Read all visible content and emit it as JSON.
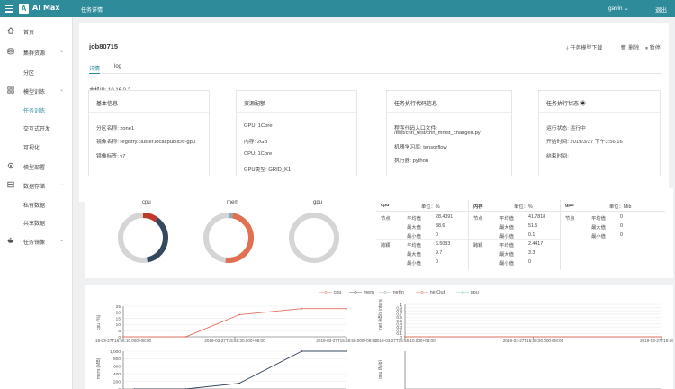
{
  "app": {
    "name": "AI Max",
    "breadcrumb": "任务详情",
    "user": "gavin",
    "logout": "退出"
  },
  "sidebar": {
    "items": [
      {
        "label": "首页"
      },
      {
        "label": "集群资源"
      },
      {
        "label": "分区"
      },
      {
        "label": "模型训练"
      },
      {
        "label": "任务训练"
      },
      {
        "label": "交互式开发"
      },
      {
        "label": "可视化"
      },
      {
        "label": "模型部署"
      },
      {
        "label": "数据存储"
      },
      {
        "label": "私有数据"
      },
      {
        "label": "共享数据"
      },
      {
        "label": "任务镜像"
      }
    ]
  },
  "job": {
    "title": "job80715",
    "actions": {
      "download": "任务模型下载",
      "delete": "删除",
      "pause": "暂停"
    },
    "tabs": [
      "详情",
      "log"
    ],
    "host_ip": "主机IP: 10.16.0.2"
  },
  "info_cards": {
    "basic": {
      "title": "基本信息",
      "lines": [
        "分区名称: zone1",
        "镜像名称: registry.cluster.local/public/tf-gpu",
        "镜像标签: v7"
      ]
    },
    "resources": {
      "title": "资源配额",
      "lines": [
        "GPU: 1Core",
        "内存: 2GB",
        "CPU: 1Core",
        "GPU类型: GRID_K1"
      ]
    },
    "code": {
      "title": "任务执行代码信息",
      "lines": [
        "程序代码入口文件:",
        "/test/cnn_test/cnn_mnist_changed.py",
        "机器学习库: tensorflow",
        "执行器: python"
      ]
    },
    "status": {
      "title": "任务执行状态",
      "lines": [
        "运行状态: 运行中",
        "开始时间: 2019/3/27 下午3:56:16",
        "结束时间:"
      ]
    }
  },
  "donuts": [
    {
      "label": "cpu",
      "used_fraction": 0.47,
      "segments": [
        {
          "color": "#c0392b",
          "fraction": 0.1
        },
        {
          "color": "#34495e",
          "fraction": 0.37
        }
      ]
    },
    {
      "label": "mem",
      "used_fraction": 0.52,
      "segments": [
        {
          "color": "#8fa9b5",
          "fraction": 0.03
        },
        {
          "color": "#e07050",
          "fraction": 0.49
        }
      ]
    },
    {
      "label": "gpu",
      "used_fraction": 0.0,
      "segments": []
    }
  ],
  "resource_table": {
    "cpu": {
      "title": "cpu",
      "unit": "单位：%",
      "groups": [
        {
          "name": "节点",
          "rows": [
            [
              "平均值",
              "28.4091"
            ],
            [
              "最大值",
              "38.6"
            ],
            [
              "最小值",
              "0"
            ]
          ]
        },
        {
          "name": "跨颖",
          "rows": [
            [
              "平均值",
              "6.5083"
            ],
            [
              "最大值",
              "9.7"
            ],
            [
              "最小值",
              "0"
            ]
          ]
        }
      ]
    },
    "mem": {
      "title": "内存",
      "unit": "单位：%",
      "groups": [
        {
          "name": "节点",
          "rows": [
            [
              "平均值",
              "41.7818"
            ],
            [
              "最大值",
              "51.5"
            ],
            [
              "最小值",
              "0.1"
            ]
          ]
        },
        {
          "name": "跨颖",
          "rows": [
            [
              "平均值",
              "2.4417"
            ],
            [
              "最大值",
              "3.3"
            ],
            [
              "最小值",
              "0"
            ]
          ]
        }
      ]
    },
    "gpu": {
      "title": "gpu",
      "unit": "单位：Mib",
      "groups": [
        {
          "name": "节点",
          "rows": [
            [
              "平均值",
              "0"
            ],
            [
              "最大值",
              "0"
            ],
            [
              "最小值",
              "0"
            ]
          ]
        }
      ]
    }
  },
  "legend": [
    {
      "name": "cpu",
      "color": "#e07060"
    },
    {
      "name": "mem",
      "color": "#34495e"
    },
    {
      "name": "netIn",
      "color": "#8fa9b5"
    },
    {
      "name": "netOut",
      "color": "#d9705a"
    },
    {
      "name": "gpu",
      "color": "#7ec8c0"
    }
  ],
  "chart_data": [
    {
      "type": "line",
      "ylabel": "cpu (%)",
      "ylim": [
        0,
        25
      ],
      "yticks": [
        "25",
        "20",
        "15",
        "10",
        "5",
        "0"
      ],
      "xticks": [
        "19-03-27T15:56:10.000+08:00",
        "2019-03-27T15:56:30.000+08:00",
        "2019-03-27T15:56:50.000+08:00"
      ],
      "series": [
        {
          "name": "cpu",
          "color": "#e07060",
          "x": [
            0,
            0.28,
            0.52,
            0.8,
            1.0
          ],
          "y": [
            0,
            0,
            18,
            23,
            23
          ]
        }
      ]
    },
    {
      "type": "line",
      "ylabel": "net (kB/s interval)",
      "ylim": [
        0,
        1
      ],
      "yticks": [
        "1",
        "0.9",
        "0.8",
        "0.7",
        "0.6",
        "0.5",
        "0.4",
        "0.3",
        "0.2",
        "0.1",
        "0"
      ],
      "xticks": [
        "2019-03-27T15:56:10.000+08:00",
        "2019-03-27T15:56:30.000+08:00",
        "2019-03-27T15:56:50.0"
      ],
      "series": [
        {
          "name": "netOut",
          "color": "#d9705a",
          "x": [
            0,
            1
          ],
          "y": [
            0,
            0
          ]
        }
      ]
    },
    {
      "type": "line",
      "ylabel": "mem (MB)",
      "ylim": [
        0,
        1000
      ],
      "yticks": [
        "1,000",
        "800",
        "600",
        "400",
        "200",
        "0"
      ],
      "series": [
        {
          "name": "mem",
          "color": "#34495e",
          "x": [
            0.05,
            0.28,
            0.52,
            0.8,
            1.0
          ],
          "y": [
            0,
            0,
            150,
            1000,
            1000
          ]
        }
      ]
    },
    {
      "type": "line",
      "ylabel": "gpu (Mib)",
      "ylim": [
        0,
        1
      ],
      "yticks": [],
      "series": []
    }
  ]
}
